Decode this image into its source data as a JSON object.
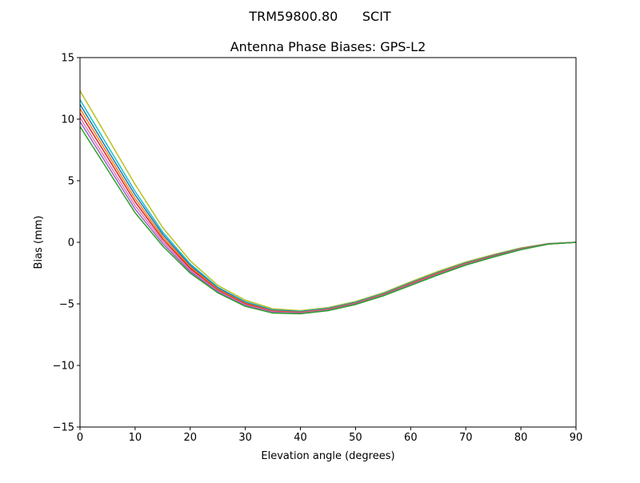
{
  "chart_data": {
    "type": "line",
    "suptitle": "TRM59800.80      SCIT",
    "title": "Antenna Phase Biases: GPS-L2",
    "xlabel": "Elevation angle (degrees)",
    "ylabel": "Bias (mm)",
    "xlim": [
      0,
      90
    ],
    "ylim": [
      -15,
      15
    ],
    "xticks": [
      0,
      10,
      20,
      30,
      40,
      50,
      60,
      70,
      80,
      90
    ],
    "yticks": [
      -15,
      -10,
      -5,
      0,
      5,
      10,
      15
    ],
    "ytick_labels": [
      "−15",
      "−10",
      "−5",
      "0",
      "5",
      "10",
      "15"
    ],
    "grid": false,
    "x": [
      0,
      5,
      10,
      15,
      20,
      25,
      30,
      35,
      40,
      45,
      50,
      55,
      60,
      65,
      70,
      75,
      80,
      85,
      90
    ],
    "series": [
      {
        "color": "#bcbd22",
        "values": [
          12.3,
          8.5,
          4.7,
          1.2,
          -1.5,
          -3.5,
          -4.7,
          -5.4,
          -5.55,
          -5.3,
          -4.8,
          -4.1,
          -3.2,
          -2.35,
          -1.6,
          -1.0,
          -0.45,
          -0.1,
          0
        ]
      },
      {
        "color": "#17becf",
        "values": [
          11.58,
          7.85,
          4.13,
          0.83,
          -1.75,
          -3.65,
          -4.83,
          -5.49,
          -5.61,
          -5.36,
          -4.86,
          -4.16,
          -3.28,
          -2.43,
          -1.66,
          -1.05,
          -0.49,
          -0.11,
          0
        ]
      },
      {
        "color": "#1f77b4",
        "values": [
          11.2,
          7.5,
          3.85,
          0.65,
          -1.88,
          -3.72,
          -4.89,
          -5.53,
          -5.64,
          -5.4,
          -4.9,
          -4.2,
          -3.31,
          -2.46,
          -1.69,
          -1.07,
          -0.51,
          -0.12,
          0
        ]
      },
      {
        "color": "#ff7f0e",
        "values": [
          10.85,
          7.2,
          3.55,
          0.45,
          -2.0,
          -3.8,
          -4.95,
          -5.58,
          -5.68,
          -5.43,
          -4.93,
          -4.23,
          -3.35,
          -2.5,
          -1.73,
          -1.1,
          -0.53,
          -0.13,
          0
        ]
      },
      {
        "color": "#d62728",
        "values": [
          10.5,
          6.9,
          3.28,
          0.27,
          -2.12,
          -3.88,
          -5.01,
          -5.62,
          -5.71,
          -5.46,
          -4.96,
          -4.26,
          -3.39,
          -2.54,
          -1.76,
          -1.12,
          -0.54,
          -0.13,
          0
        ]
      },
      {
        "color": "#e377c2",
        "values": [
          10.13,
          6.55,
          2.98,
          0.08,
          -2.25,
          -3.95,
          -5.08,
          -5.66,
          -5.74,
          -5.49,
          -4.99,
          -4.29,
          -3.43,
          -2.58,
          -1.79,
          -1.15,
          -0.56,
          -0.14,
          0
        ]
      },
      {
        "color": "#9467bd",
        "values": [
          9.8,
          6.25,
          2.7,
          -0.1,
          -2.37,
          -4.02,
          -5.14,
          -5.7,
          -5.77,
          -5.52,
          -5.02,
          -4.32,
          -3.46,
          -2.61,
          -1.82,
          -1.17,
          -0.58,
          -0.14,
          0
        ]
      },
      {
        "color": "#2ca02c",
        "values": [
          9.4,
          5.9,
          2.4,
          -0.3,
          -2.5,
          -4.1,
          -5.2,
          -5.75,
          -5.8,
          -5.55,
          -5.05,
          -4.35,
          -3.5,
          -2.65,
          -1.85,
          -1.2,
          -0.6,
          -0.15,
          0
        ]
      }
    ]
  }
}
